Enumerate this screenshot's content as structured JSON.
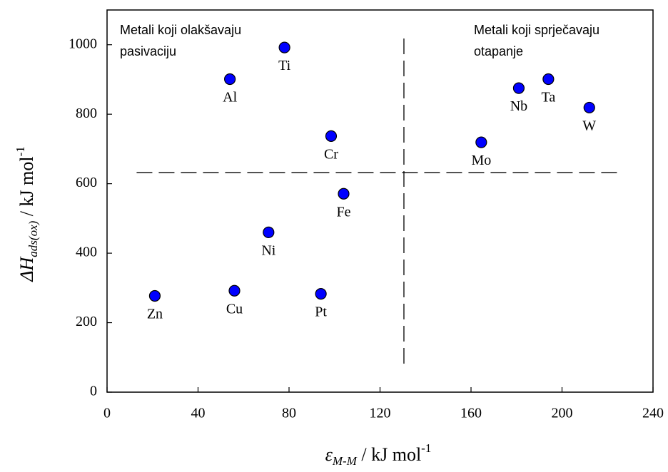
{
  "chart_data": {
    "type": "scatter",
    "labels": [
      "Zn",
      "Cu",
      "Ni",
      "Pt",
      "Fe",
      "Cr",
      "Al",
      "Ti",
      "Mo",
      "Nb",
      "Ta",
      "W"
    ],
    "x": [
      21,
      56,
      71,
      94,
      104,
      98.5,
      54,
      78,
      164.5,
      181,
      194,
      212
    ],
    "values": [
      277,
      292,
      460,
      283,
      571,
      737,
      901,
      992,
      719,
      875,
      901,
      819
    ],
    "color": "#0000ff",
    "xlim": [
      0,
      240
    ],
    "ylim": [
      0,
      1100
    ],
    "xticks": [
      0,
      40,
      80,
      120,
      160,
      200,
      240
    ],
    "yticks": [
      0,
      200,
      400,
      600,
      800,
      1000
    ],
    "xlabel": {
      "symbol": "ε",
      "subscript": "M-M",
      "unit": " / kJ mol",
      "superscript": "-1"
    },
    "ylabel": {
      "symbol": "ΔH",
      "subscript": "ads(ox)",
      "unit": " / kJ mol",
      "superscript": "-1"
    },
    "annotations": [
      [
        "Metali koji olakšavaju",
        "pasivaciju"
      ],
      [
        "Metali koji sprječavaju",
        "otapanje"
      ]
    ],
    "reference_lines": {
      "horizontal": {
        "y": 632,
        "x": [
          13,
          226
        ]
      },
      "vertical": {
        "x": 130.5,
        "y": [
          82,
          1026
        ]
      }
    }
  }
}
